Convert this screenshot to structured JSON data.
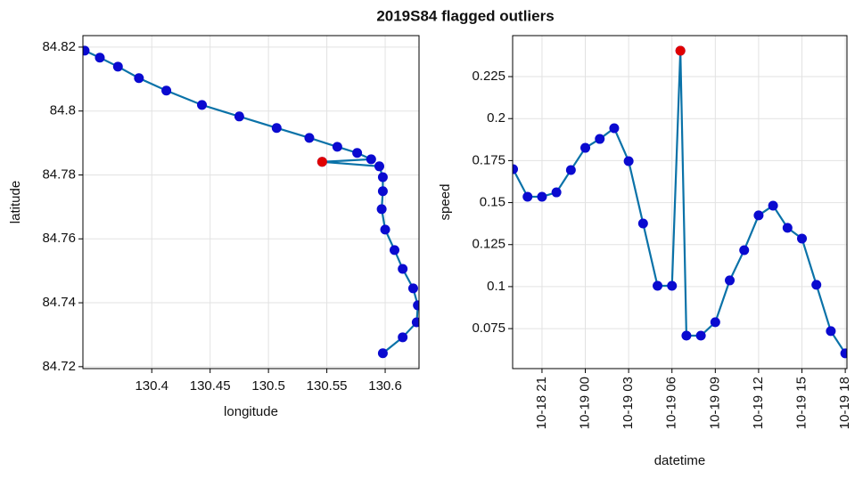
{
  "title": "2019S84 flagged outliers",
  "chart_data": [
    {
      "type": "line",
      "xlabel": "longitude",
      "ylabel": "latitude",
      "grid": true,
      "xlim": [
        130.341,
        130.629
      ],
      "ylim": [
        84.7194,
        84.8236
      ],
      "xticks": [
        130.4,
        130.45,
        130.5,
        130.55,
        130.6
      ],
      "yticks": [
        84.72,
        84.74,
        84.76,
        84.78,
        84.8,
        84.82
      ],
      "series": [
        {
          "color": "#0a72a8",
          "marker_color": "#0a0ad0",
          "x": [
            130.3425,
            130.3555,
            130.371,
            130.389,
            130.4125,
            130.443,
            130.475,
            130.507,
            130.535,
            130.559,
            130.576,
            130.588,
            130.546,
            130.595,
            130.598,
            130.598,
            130.597,
            130.6,
            130.608,
            130.615,
            130.624,
            130.628,
            130.627,
            130.615,
            130.598
          ],
          "values": [
            84.8189,
            84.8167,
            84.8139,
            84.8103,
            84.8064,
            84.8019,
            84.7983,
            84.7947,
            84.7916,
            84.7888,
            84.7869,
            84.7849,
            84.7841,
            84.7827,
            84.7793,
            84.7749,
            84.7693,
            84.7629,
            84.7565,
            84.7506,
            84.7445,
            84.7392,
            84.7339,
            84.7292,
            84.7242
          ]
        },
        {
          "color": "#e00000",
          "marker_color": "#e00000",
          "linestyle": "none",
          "x": [
            130.546
          ],
          "values": [
            84.7841
          ]
        }
      ]
    },
    {
      "type": "line",
      "xlabel": "datetime",
      "ylabel": "speed",
      "grid": true,
      "xtick_rotation": 90,
      "xlim": [
        "10-18 18:58",
        "10-19 18:07"
      ],
      "ylim": [
        0.0512,
        0.2494
      ],
      "xticks": [
        {
          "value": "10-18 21:00",
          "label": "10-18 21"
        },
        {
          "value": "10-19 00:00",
          "label": "10-19 00"
        },
        {
          "value": "10-19 03:00",
          "label": "10-19 03"
        },
        {
          "value": "10-19 06:00",
          "label": "10-19 06"
        },
        {
          "value": "10-19 09:00",
          "label": "10-19 09"
        },
        {
          "value": "10-19 12:00",
          "label": "10-19 12"
        },
        {
          "value": "10-19 15:00",
          "label": "10-19 15"
        },
        {
          "value": "10-19 18:00",
          "label": "10-19 18"
        }
      ],
      "yticks": [
        0.075,
        0.1,
        0.125,
        0.15,
        0.175,
        0.2,
        0.225
      ],
      "series": [
        {
          "color": "#0a72a8",
          "marker_color": "#0a0ad0",
          "x": [
            "10-18 19:00",
            "10-18 20:00",
            "10-18 21:00",
            "10-18 22:00",
            "10-18 23:00",
            "10-19 00:00",
            "10-19 01:00",
            "10-19 02:00",
            "10-19 03:00",
            "10-19 04:00",
            "10-19 05:00",
            "10-19 06:00",
            "10-19 06:35",
            "10-19 07:00",
            "10-19 08:00",
            "10-19 09:00",
            "10-19 10:00",
            "10-19 11:00",
            "10-19 12:00",
            "10-19 13:00",
            "10-19 14:00",
            "10-19 15:00",
            "10-19 16:00",
            "10-19 17:00",
            "10-19 18:00"
          ],
          "values": [
            0.1699,
            0.1535,
            0.1535,
            0.1561,
            0.1694,
            0.1826,
            0.1879,
            0.1943,
            0.1747,
            0.1376,
            0.1005,
            0.1005,
            0.2404,
            0.0708,
            0.0708,
            0.0788,
            0.1037,
            0.1217,
            0.1424,
            0.1482,
            0.135,
            0.1286,
            0.1011,
            0.0735,
            0.0603
          ]
        },
        {
          "color": "#e00000",
          "marker_color": "#e00000",
          "linestyle": "none",
          "x": [
            "10-19 06:35"
          ],
          "values": [
            0.2404
          ]
        }
      ]
    }
  ]
}
